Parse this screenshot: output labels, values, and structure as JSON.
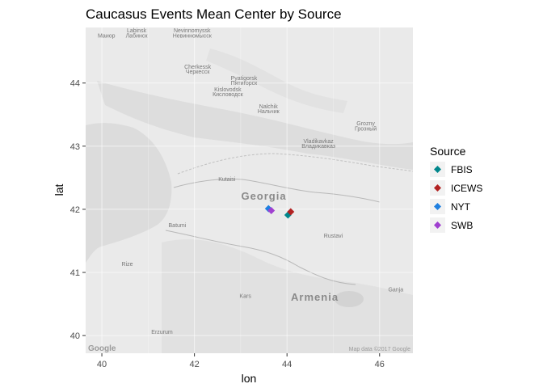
{
  "chart_data": {
    "type": "scatter",
    "title": "Caucasus Events Mean Center by Source",
    "xlabel": "lon",
    "ylabel": "lat",
    "xlim": [
      39.65,
      46.72
    ],
    "ylim": [
      39.72,
      44.88
    ],
    "x_ticks": [
      40,
      42,
      44,
      46
    ],
    "y_ticks": [
      40,
      41,
      42,
      43,
      44
    ],
    "x_tick_labels": [
      "40",
      "42",
      "44",
      "46"
    ],
    "y_tick_labels": [
      "40",
      "41",
      "42",
      "43",
      "44"
    ],
    "grid": true,
    "legend_title": "Source",
    "legend_position": "right",
    "background": "basemap (greyscale terrain map of the Caucasus region)",
    "series": [
      {
        "name": "FBIS",
        "color": "#00868B",
        "marker": "diamond",
        "points": [
          {
            "x": 44.02,
            "y": 41.91
          }
        ]
      },
      {
        "name": "ICEWS",
        "color": "#B22222",
        "marker": "diamond",
        "points": [
          {
            "x": 44.08,
            "y": 41.96
          }
        ]
      },
      {
        "name": "NYT",
        "color": "#1E7FE0",
        "marker": "diamond",
        "points": [
          {
            "x": 43.6,
            "y": 42.01
          }
        ]
      },
      {
        "name": "SWB",
        "color": "#A040D0",
        "marker": "diamond",
        "points": [
          {
            "x": 43.66,
            "y": 41.98
          }
        ]
      }
    ],
    "map_labels": {
      "countries": [
        "Georgia",
        "Armenia"
      ],
      "places": [
        {
          "text": "Маиор",
          "lon": 40.1,
          "lat": 44.72
        },
        {
          "text": "Labinsk",
          "lon": 40.75,
          "lat": 44.8
        },
        {
          "text": "Лабинск",
          "lon": 40.75,
          "lat": 44.72
        },
        {
          "text": "Nevinnomyssk",
          "lon": 41.95,
          "lat": 44.8
        },
        {
          "text": "Невинномысск",
          "lon": 41.95,
          "lat": 44.72
        },
        {
          "text": "Cherkessk",
          "lon": 42.07,
          "lat": 44.23
        },
        {
          "text": "Черкесск",
          "lon": 42.07,
          "lat": 44.15
        },
        {
          "text": "Pyatigorsk",
          "lon": 43.07,
          "lat": 44.05
        },
        {
          "text": "Пятигорск",
          "lon": 43.07,
          "lat": 43.97
        },
        {
          "text": "Kislovodsk",
          "lon": 42.72,
          "lat": 43.87
        },
        {
          "text": "Кисловодск",
          "lon": 42.72,
          "lat": 43.79
        },
        {
          "text": "Nalchik",
          "lon": 43.6,
          "lat": 43.6
        },
        {
          "text": "Нальчик",
          "lon": 43.6,
          "lat": 43.52
        },
        {
          "text": "Vladikavkaz",
          "lon": 44.68,
          "lat": 43.05
        },
        {
          "text": "Владикавказ",
          "lon": 44.68,
          "lat": 42.97
        },
        {
          "text": "Grozny",
          "lon": 45.7,
          "lat": 43.33
        },
        {
          "text": "Грозный",
          "lon": 45.7,
          "lat": 43.25
        },
        {
          "text": "Kutaisi",
          "lon": 42.7,
          "lat": 42.45
        },
        {
          "text": "Batumi",
          "lon": 41.63,
          "lat": 41.72
        },
        {
          "text": "Rustavi",
          "lon": 45.0,
          "lat": 41.55
        },
        {
          "text": "Rize",
          "lon": 40.55,
          "lat": 41.1
        },
        {
          "text": "Kars",
          "lon": 43.1,
          "lat": 40.6
        },
        {
          "text": "Erzurum",
          "lon": 41.3,
          "lat": 40.03
        },
        {
          "text": "Ganja",
          "lon": 46.35,
          "lat": 40.7
        }
      ],
      "attribution_left": "Google",
      "attribution_right": "Map data ©2017 Google"
    }
  }
}
